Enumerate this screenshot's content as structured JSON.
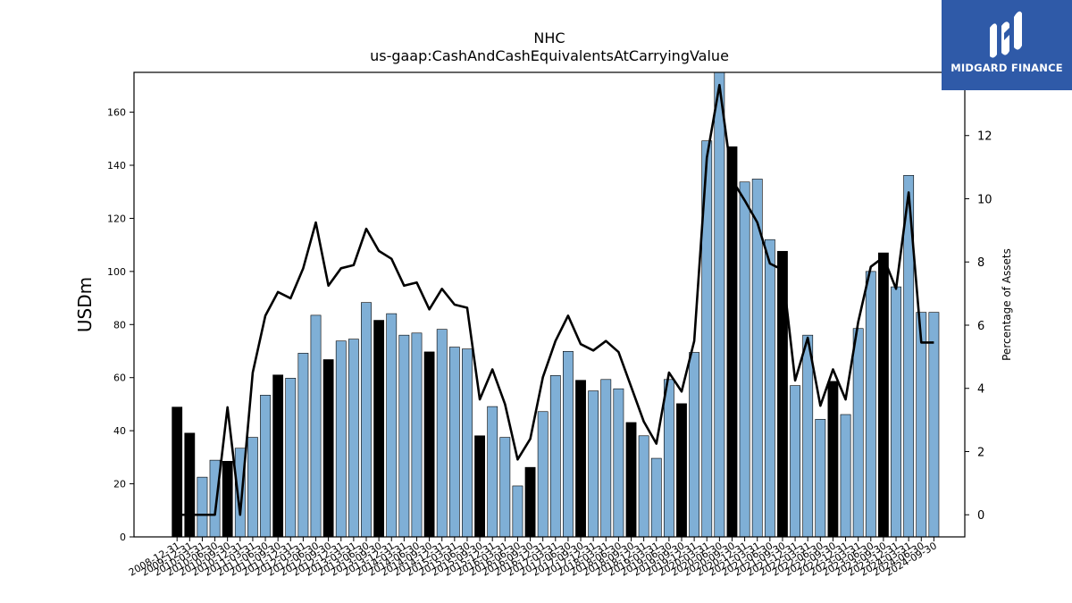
{
  "chart_data": {
    "type": "bar",
    "title": "NHC",
    "subtitle": "us-gaap:CashAndCashEquivalentsAtCarryingValue",
    "ylabel": "USDm",
    "y2label": "Percentage of Assets",
    "ylim": [
      0,
      175
    ],
    "y2lim": [
      -0.7,
      14.0
    ],
    "yticks": [
      0,
      20,
      40,
      60,
      80,
      100,
      120,
      140,
      160
    ],
    "y2ticks": [
      0,
      2,
      4,
      6,
      8,
      10,
      12
    ],
    "categories": [
      "2008-12-31",
      "2009-12-31",
      "2010-03-31",
      "2010-06-30",
      "2010-09-30",
      "2010-12-31",
      "2011-03-31",
      "2011-06-30",
      "2011-09-30",
      "2011-12-31",
      "2012-03-31",
      "2012-06-30",
      "2012-09-30",
      "2012-12-31",
      "2013-03-31",
      "2013-06-30",
      "2013-09-30",
      "2013-12-31",
      "2014-03-31",
      "2014-06-30",
      "2014-09-30",
      "2014-12-31",
      "2015-03-31",
      "2015-06-30",
      "2015-09-30",
      "2015-12-31",
      "2016-03-31",
      "2016-06-30",
      "2016-09-30",
      "2016-12-31",
      "2017-03-31",
      "2017-06-30",
      "2017-09-30",
      "2017-12-31",
      "2018-03-31",
      "2018-06-30",
      "2018-09-30",
      "2018-12-31",
      "2019-03-31",
      "2019-06-30",
      "2019-09-30",
      "2019-12-31",
      "2020-03-31",
      "2020-06-30",
      "2020-09-30",
      "2020-12-31",
      "2021-03-31",
      "2021-06-30",
      "2021-09-30",
      "2021-12-31",
      "2022-03-31",
      "2022-06-30",
      "2022-09-30",
      "2022-12-31",
      "2023-03-31",
      "2023-06-30",
      "2023-09-30",
      "2023-12-31",
      "2024-03-31",
      "2024-06-30",
      "2024-09-30"
    ],
    "series": [
      {
        "type": "bar",
        "values": [
          48.9,
          39.1,
          22.5,
          28.9,
          28.5,
          33.4,
          37.5,
          53.4,
          61.0,
          59.8,
          69.2,
          83.5,
          66.8,
          73.8,
          74.5,
          88.3,
          81.6,
          84.1,
          76.0,
          76.8,
          69.7,
          78.2,
          71.5,
          70.8,
          38.1,
          49.1,
          37.5,
          19.2,
          26.2,
          47.2,
          60.8,
          69.9,
          59.0,
          55.0,
          59.3,
          55.8,
          43.1,
          38.1,
          29.6,
          59.3,
          50.2,
          69.5,
          149.2,
          175.5,
          147.0,
          133.7,
          134.8,
          112.0,
          107.6,
          57.0,
          76.0,
          44.3,
          58.6,
          46.1,
          78.5,
          100.0,
          107.0,
          94.2,
          136.2,
          84.6,
          84.6
        ],
        "highlight": [
          true,
          true,
          false,
          false,
          true,
          false,
          false,
          false,
          true,
          false,
          false,
          false,
          true,
          false,
          false,
          false,
          true,
          false,
          false,
          false,
          true,
          false,
          false,
          false,
          true,
          false,
          false,
          false,
          true,
          false,
          false,
          false,
          true,
          false,
          false,
          false,
          true,
          false,
          false,
          false,
          true,
          false,
          false,
          false,
          true,
          false,
          false,
          false,
          true,
          false,
          false,
          false,
          true,
          false,
          false,
          false,
          true,
          false,
          false,
          false,
          false
        ],
        "colors": {
          "normal": "#7fafd6",
          "highlight": "#000000"
        }
      },
      {
        "type": "line",
        "name": "Percentage of Assets",
        "values": [
          0,
          0,
          0,
          0,
          3.4,
          0,
          4.5,
          6.3,
          7.05,
          6.85,
          7.8,
          9.25,
          7.25,
          7.8,
          7.9,
          9.05,
          8.35,
          8.1,
          7.25,
          7.35,
          6.5,
          7.15,
          6.65,
          6.55,
          3.65,
          4.6,
          3.5,
          1.75,
          2.4,
          4.35,
          5.5,
          6.3,
          5.4,
          5.2,
          5.5,
          5.15,
          4.05,
          2.95,
          2.25,
          4.5,
          3.9,
          5.5,
          11.3,
          13.6,
          10.6,
          9.95,
          9.25,
          7.95,
          7.75,
          4.25,
          5.6,
          3.45,
          4.6,
          3.65,
          6.1,
          7.85,
          8.15,
          7.15,
          10.2,
          5.45,
          5.45
        ],
        "color": "#000000"
      }
    ],
    "grid": false,
    "legend": "none"
  },
  "logo": {
    "brand_text": "MIDGARD FINANCE",
    "background": "#2f5aa8"
  }
}
